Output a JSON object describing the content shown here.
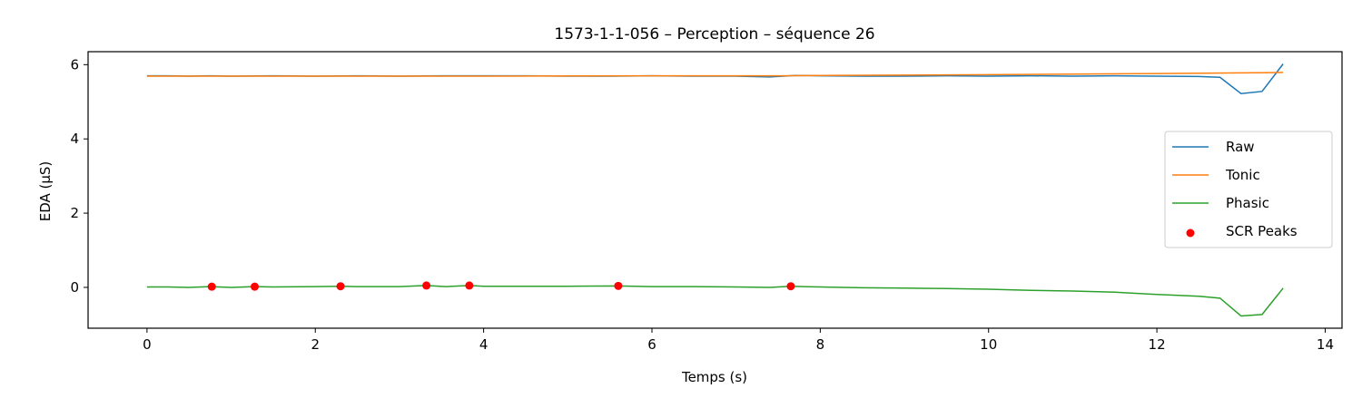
{
  "chart_data": {
    "type": "line",
    "title": "1573-1-1-056 – Perception – séquence 26",
    "xlabel": "Temps (s)",
    "ylabel": "EDA (µS)",
    "xlim": [
      -0.7,
      14.2
    ],
    "ylim": [
      -1.1,
      6.35
    ],
    "xticks": [
      0,
      2,
      4,
      6,
      8,
      10,
      12,
      14
    ],
    "yticks": [
      0,
      2,
      4,
      6
    ],
    "grid": false,
    "legend_position": "center-right",
    "series": [
      {
        "name": "Raw",
        "kind": "line",
        "color": "#1f77b4",
        "x": [
          0,
          0.25,
          0.5,
          0.75,
          1.0,
          1.5,
          2.0,
          2.5,
          3.0,
          3.5,
          4.0,
          4.5,
          5.0,
          5.5,
          6.0,
          6.5,
          7.0,
          7.4,
          7.7,
          8.0,
          8.5,
          9.0,
          9.5,
          10.0,
          10.5,
          11.0,
          11.5,
          12.0,
          12.5,
          12.75,
          13.0,
          13.25,
          13.5
        ],
        "y": [
          5.7,
          5.7,
          5.69,
          5.7,
          5.69,
          5.7,
          5.69,
          5.7,
          5.69,
          5.7,
          5.7,
          5.7,
          5.69,
          5.69,
          5.7,
          5.69,
          5.69,
          5.67,
          5.71,
          5.7,
          5.69,
          5.69,
          5.7,
          5.69,
          5.7,
          5.69,
          5.7,
          5.69,
          5.68,
          5.66,
          5.22,
          5.28,
          6.02
        ]
      },
      {
        "name": "Tonic",
        "kind": "line",
        "color": "#ff7f0e",
        "x": [
          0,
          2,
          4,
          6,
          7.5,
          8,
          10,
          12,
          13.5
        ],
        "y": [
          5.69,
          5.69,
          5.69,
          5.7,
          5.7,
          5.71,
          5.73,
          5.76,
          5.79
        ]
      },
      {
        "name": "Phasic",
        "kind": "line",
        "color": "#2ca02c",
        "x": [
          0,
          0.25,
          0.5,
          0.75,
          1.0,
          1.28,
          1.5,
          2.0,
          2.3,
          2.5,
          3.0,
          3.32,
          3.55,
          3.83,
          4.0,
          4.5,
          5.0,
          5.6,
          6.0,
          6.5,
          7.0,
          7.4,
          7.65,
          8.0,
          8.5,
          9.0,
          9.5,
          10.0,
          10.5,
          11.0,
          11.5,
          12.0,
          12.5,
          12.75,
          13.0,
          13.25,
          13.5
        ],
        "y": [
          0.01,
          0.01,
          0.0,
          0.02,
          0.0,
          0.02,
          0.01,
          0.02,
          0.03,
          0.02,
          0.02,
          0.05,
          0.02,
          0.05,
          0.03,
          0.03,
          0.03,
          0.04,
          0.02,
          0.02,
          0.01,
          0.0,
          0.03,
          0.01,
          -0.01,
          -0.02,
          -0.03,
          -0.05,
          -0.08,
          -0.1,
          -0.13,
          -0.19,
          -0.24,
          -0.29,
          -0.77,
          -0.73,
          -0.02
        ]
      },
      {
        "name": "SCR Peaks",
        "kind": "scatter",
        "color": "#ff0000",
        "x": [
          0.77,
          1.28,
          2.3,
          3.32,
          3.83,
          5.6,
          7.65
        ],
        "y": [
          0.02,
          0.02,
          0.03,
          0.05,
          0.05,
          0.04,
          0.03
        ]
      }
    ]
  }
}
